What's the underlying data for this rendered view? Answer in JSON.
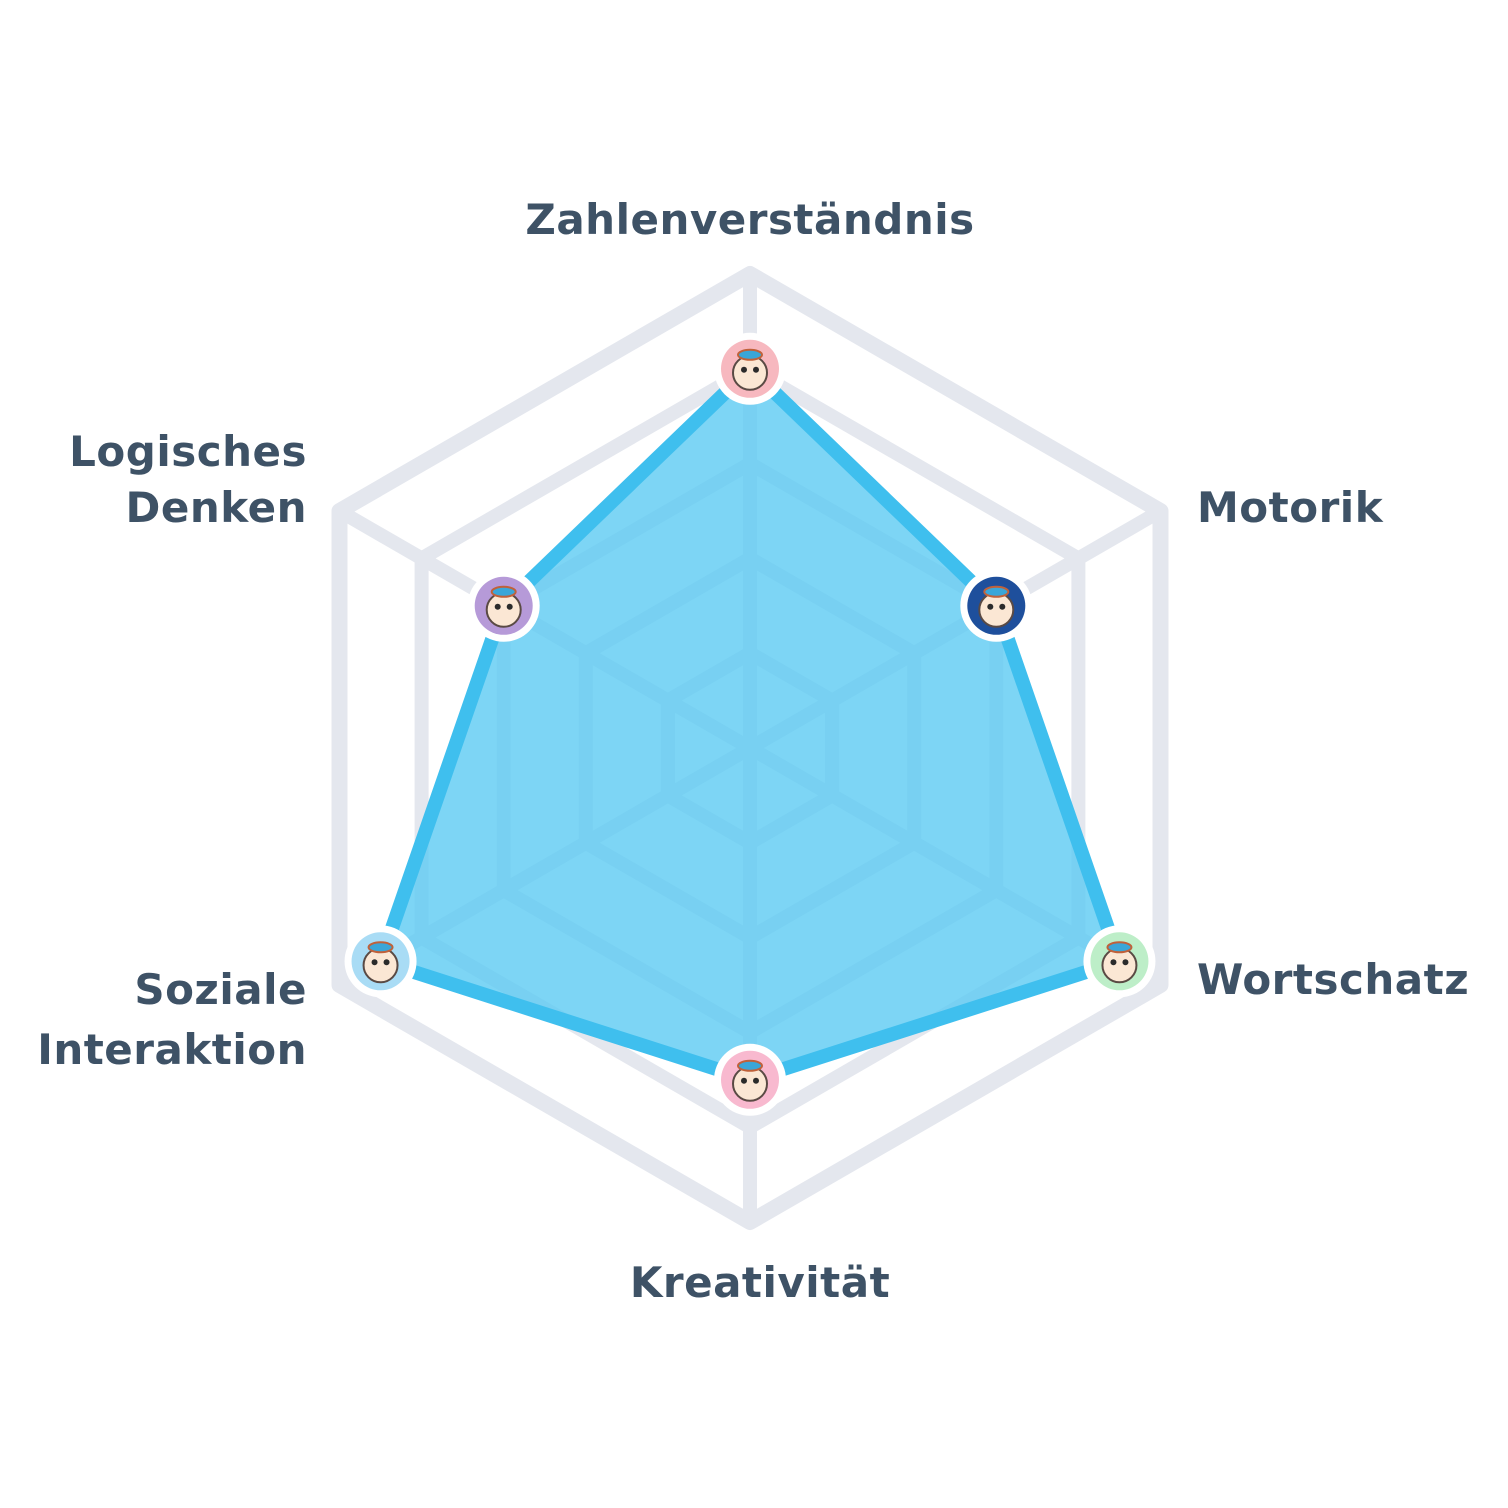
{
  "chart_data": {
    "type": "radar",
    "axes": [
      {
        "label": [
          "Zahlenverständnis"
        ],
        "value": 0.8,
        "avatar": {
          "icon": "raccoon-avatar-icon",
          "bg": "#f7b8bf"
        }
      },
      {
        "label": [
          "Motorik"
        ],
        "value": 0.6,
        "avatar": {
          "icon": "blue-creature-avatar-icon",
          "bg": "#1e4f9c"
        }
      },
      {
        "label": [
          "Wortschatz"
        ],
        "value": 0.9,
        "avatar": {
          "icon": "fox-avatar-icon",
          "bg": "#bdeec8"
        }
      },
      {
        "label": [
          "Kreativität"
        ],
        "value": 0.7,
        "avatar": {
          "icon": "cat-avatar-icon",
          "bg": "#f8b9cf"
        }
      },
      {
        "label": [
          "Soziale",
          "Interaktion"
        ],
        "value": 0.9,
        "avatar": {
          "icon": "tiger-avatar-icon",
          "bg": "#a9dcf5"
        }
      },
      {
        "label": [
          "Logisches",
          "Denken"
        ],
        "value": 0.6,
        "avatar": {
          "icon": "dog-avatar-icon",
          "bg": "#b69ad8"
        }
      }
    ],
    "range": [
      0,
      1
    ],
    "grid_levels": 5,
    "grid": true,
    "colors": {
      "grid": "#e4e7ee",
      "fill": "#5ccaf2",
      "stroke": "#3fbfee",
      "label": "#3e5266"
    }
  }
}
